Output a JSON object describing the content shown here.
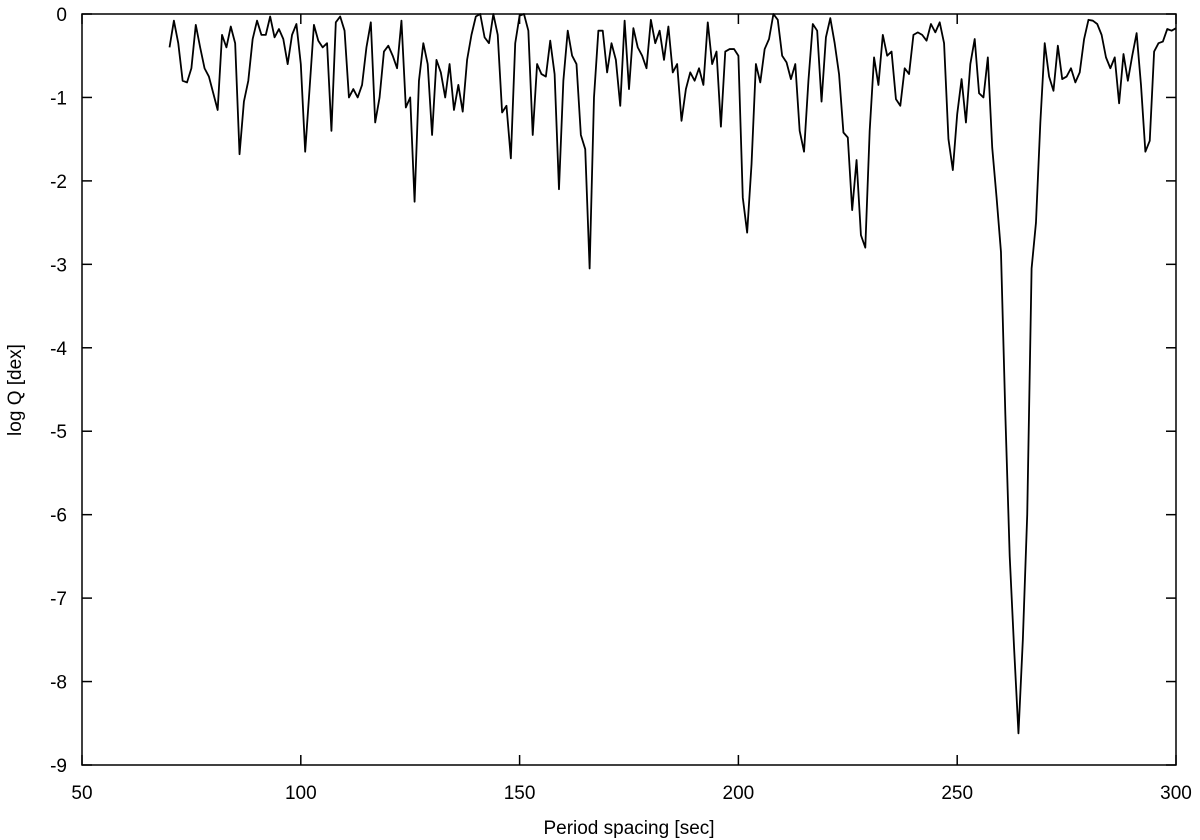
{
  "chart_data": {
    "type": "line",
    "xlabel": "Period spacing [sec]",
    "ylabel": "log Q [dex]",
    "xlim": [
      50,
      300
    ],
    "xticks": [
      50,
      100,
      150,
      200,
      250,
      300
    ],
    "ylim": [
      -9,
      0
    ],
    "yticks": [
      0,
      -1,
      -2,
      -3,
      -4,
      -5,
      -6,
      -7,
      -8,
      -9
    ],
    "x": [
      70,
      71,
      72,
      73,
      74,
      75,
      76,
      77,
      78,
      79,
      80,
      81,
      82,
      83,
      84,
      85,
      86,
      87,
      88,
      89,
      90,
      91,
      92,
      93,
      94,
      95,
      96,
      97,
      98,
      99,
      100,
      101,
      102,
      103,
      104,
      105,
      106,
      107,
      108,
      109,
      110,
      111,
      112,
      113,
      114,
      115,
      116,
      117,
      118,
      119,
      120,
      121,
      122,
      123,
      124,
      125,
      126,
      127,
      128,
      129,
      130,
      131,
      132,
      133,
      134,
      135,
      136,
      137,
      138,
      139,
      140,
      141,
      142,
      143,
      144,
      145,
      146,
      147,
      148,
      149,
      150,
      151,
      152,
      153,
      154,
      155,
      156,
      157,
      158,
      159,
      160,
      161,
      162,
      163,
      164,
      165,
      166,
      167,
      168,
      169,
      170,
      171,
      172,
      173,
      174,
      175,
      176,
      177,
      178,
      179,
      180,
      181,
      182,
      183,
      184,
      185,
      186,
      187,
      188,
      189,
      190,
      191,
      192,
      193,
      194,
      195,
      196,
      197,
      198,
      199,
      200,
      201,
      202,
      203,
      204,
      205,
      206,
      207,
      208,
      209,
      210,
      211,
      212,
      213,
      214,
      215,
      216,
      217,
      218,
      219,
      220,
      221,
      222,
      223,
      224,
      225,
      226,
      227,
      228,
      229,
      230,
      231,
      232,
      233,
      234,
      235,
      236,
      237,
      238,
      239,
      240,
      241,
      242,
      243,
      244,
      245,
      246,
      247,
      248,
      249,
      250,
      251,
      252,
      253,
      254,
      255,
      256,
      257,
      258,
      259,
      260,
      261,
      262,
      263,
      264,
      265,
      266,
      267,
      268,
      269,
      270,
      271,
      272,
      273,
      274,
      275,
      276,
      277,
      278,
      279,
      280,
      281,
      282,
      283,
      284,
      285,
      286,
      287,
      288,
      289,
      290,
      291,
      292,
      293,
      294,
      295,
      296,
      297,
      298,
      299,
      300
    ],
    "series": [
      {
        "color": "#000000",
        "values": [
          -0.4,
          -0.08,
          -0.35,
          -0.8,
          -0.82,
          -0.65,
          -0.13,
          -0.4,
          -0.65,
          -0.75,
          -0.95,
          -1.15,
          -0.25,
          -0.4,
          -0.15,
          -0.35,
          -1.68,
          -1.05,
          -0.8,
          -0.3,
          -0.08,
          -0.25,
          -0.25,
          -0.03,
          -0.28,
          -0.18,
          -0.3,
          -0.6,
          -0.25,
          -0.12,
          -0.6,
          -1.65,
          -0.9,
          -0.13,
          -0.32,
          -0.4,
          -0.35,
          -1.4,
          -0.1,
          -0.03,
          -0.2,
          -1.0,
          -0.9,
          -1.0,
          -0.85,
          -0.4,
          -0.1,
          -1.3,
          -1.0,
          -0.45,
          -0.38,
          -0.5,
          -0.65,
          -0.08,
          -1.12,
          -1.0,
          -2.25,
          -0.8,
          -0.35,
          -0.6,
          -1.45,
          -0.55,
          -0.7,
          -1.0,
          -0.6,
          -1.15,
          -0.85,
          -1.17,
          -0.55,
          -0.25,
          -0.03,
          0,
          -0.28,
          -0.35,
          0,
          -0.25,
          -1.18,
          -1.1,
          -1.73,
          -0.35,
          -0.02,
          0,
          -0.2,
          -1.45,
          -0.6,
          -0.72,
          -0.75,
          -0.32,
          -0.72,
          -2.1,
          -0.8,
          -0.2,
          -0.5,
          -0.6,
          -1.45,
          -1.62,
          -3.05,
          -1.0,
          -0.2,
          -0.2,
          -0.7,
          -0.35,
          -0.55,
          -1.1,
          -0.08,
          -0.9,
          -0.17,
          -0.4,
          -0.5,
          -0.65,
          -0.07,
          -0.35,
          -0.2,
          -0.55,
          -0.15,
          -0.7,
          -0.6,
          -1.28,
          -0.9,
          -0.7,
          -0.8,
          -0.65,
          -0.85,
          -0.1,
          -0.6,
          -0.45,
          -1.35,
          -0.45,
          -0.42,
          -0.42,
          -0.5,
          -2.2,
          -2.62,
          -1.8,
          -0.6,
          -0.82,
          -0.42,
          -0.3,
          0,
          -0.07,
          -0.5,
          -0.58,
          -0.78,
          -0.6,
          -1.4,
          -1.65,
          -0.8,
          -0.12,
          -0.2,
          -1.05,
          -0.28,
          -0.05,
          -0.35,
          -0.72,
          -1.42,
          -1.48,
          -2.35,
          -1.75,
          -2.65,
          -2.8,
          -1.4,
          -0.52,
          -0.85,
          -0.25,
          -0.5,
          -0.45,
          -1.02,
          -1.1,
          -0.65,
          -0.72,
          -0.25,
          -0.22,
          -0.25,
          -0.32,
          -0.12,
          -0.22,
          -0.1,
          -0.35,
          -1.5,
          -1.87,
          -1.2,
          -0.78,
          -1.3,
          -0.6,
          -0.3,
          -0.95,
          -1.0,
          -0.52,
          -1.6,
          -2.2,
          -2.85,
          -4.8,
          -6.5,
          -7.6,
          -8.62,
          -7.5,
          -6.0,
          -3.05,
          -2.5,
          -1.3,
          -0.35,
          -0.75,
          -0.92,
          -0.38,
          -0.78,
          -0.75,
          -0.65,
          -0.82,
          -0.7,
          -0.3,
          -0.07,
          -0.08,
          -0.12,
          -0.25,
          -0.52,
          -0.65,
          -0.52,
          -1.07,
          -0.48,
          -0.8,
          -0.5,
          -0.23,
          -0.85,
          -1.65,
          -1.52,
          -0.45,
          -0.35,
          -0.33,
          -0.18,
          -0.2,
          -0.17
        ]
      }
    ]
  }
}
